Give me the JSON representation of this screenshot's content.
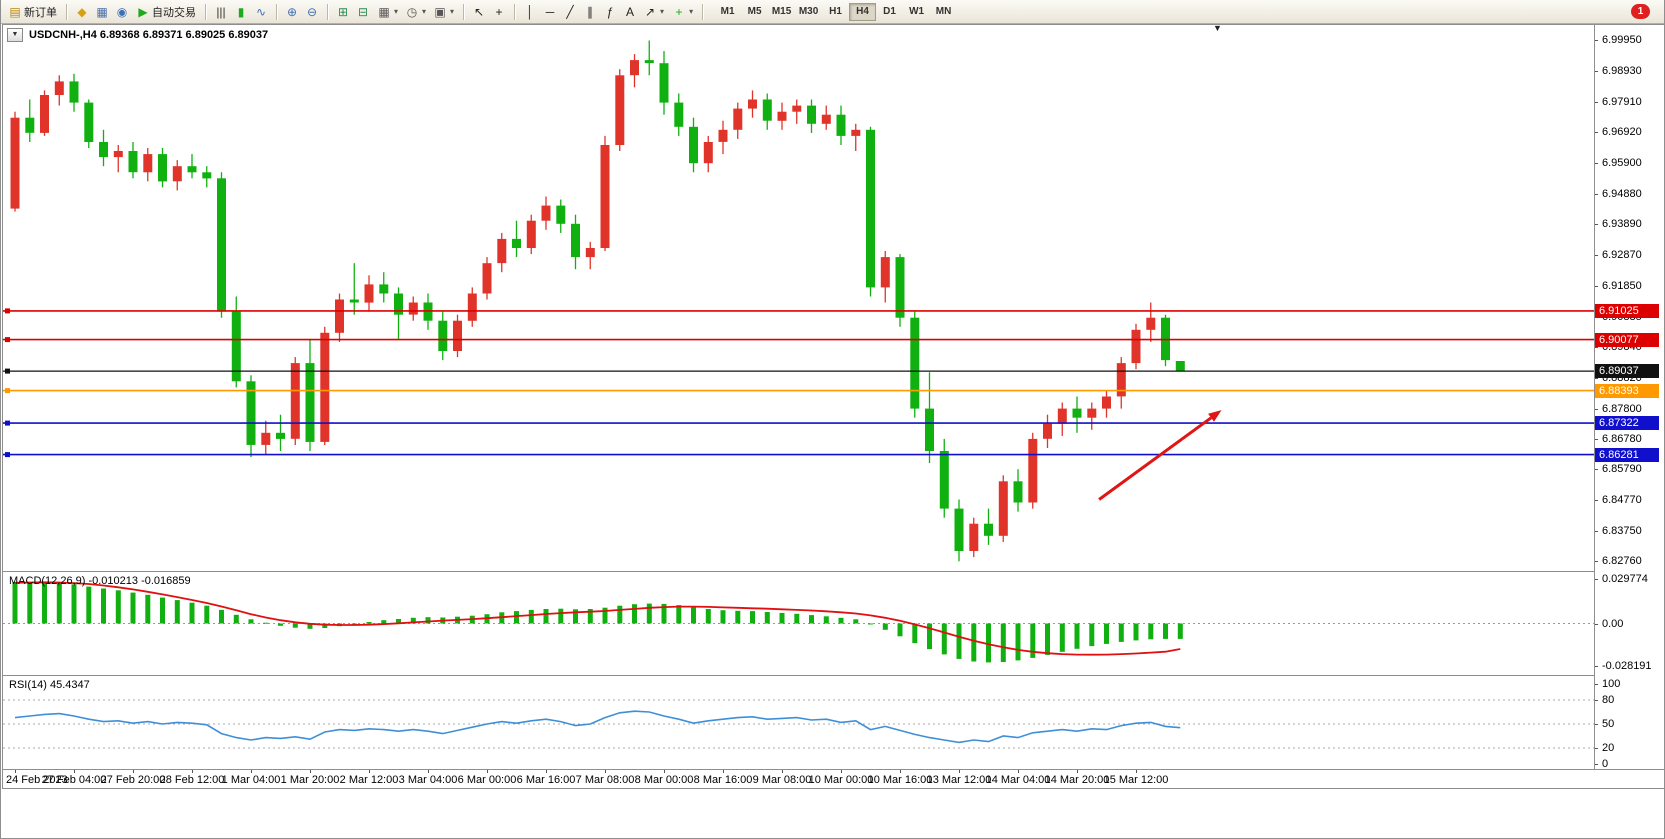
{
  "window": {
    "notification_badge": "1",
    "badge_color": "#e02020"
  },
  "toolbar": {
    "dropdown_glyph": "▾",
    "new_order": {
      "label": "新订单",
      "glyph": "▤",
      "color": "#b8860b"
    },
    "system_icons": [
      {
        "name": "market-watch-icon",
        "glyph": "◆",
        "color": "#d4a017"
      },
      {
        "name": "data-window-icon",
        "glyph": "▦",
        "color": "#4a6da7"
      },
      {
        "name": "metaquotes-icon",
        "glyph": "◉",
        "color": "#3f6fb5"
      }
    ],
    "autotrading": {
      "label": "自动交易",
      "glyph": "▶",
      "color": "#1daa1d"
    },
    "chart_types": [
      {
        "name": "bar-chart-icon",
        "glyph": "|||",
        "color": "#333333"
      },
      {
        "name": "candlestick-chart-icon",
        "glyph": "▮",
        "color": "#1daa1d"
      },
      {
        "name": "line-chart-icon",
        "glyph": "∿",
        "color": "#3f6fb5"
      }
    ],
    "zoom": [
      {
        "name": "zoom-in-icon",
        "glyph": "⊕",
        "color": "#3f6fb5"
      },
      {
        "name": "zoom-out-icon",
        "glyph": "⊖",
        "color": "#3f6fb5"
      }
    ],
    "window_icons": [
      {
        "name": "tile-windows-icon",
        "glyph": "⊞",
        "color": "#2e8b57"
      },
      {
        "name": "cascade-windows-icon",
        "glyph": "⊟",
        "color": "#2e8b57"
      }
    ],
    "chart_tools": [
      {
        "name": "new-chart-icon",
        "glyph": "▦",
        "dropdown": true,
        "color": "#555555"
      },
      {
        "name": "period-icon",
        "glyph": "◷",
        "dropdown": true,
        "color": "#555555"
      },
      {
        "name": "template-icon",
        "glyph": "▣",
        "dropdown": true,
        "color": "#555555"
      }
    ],
    "cursor_tools": [
      {
        "name": "cursor-icon",
        "glyph": "↖",
        "color": "#222222"
      },
      {
        "name": "crosshair-icon",
        "glyph": "+",
        "color": "#222222"
      }
    ],
    "draw_tools": [
      {
        "name": "vertical-line-icon",
        "glyph": "│",
        "color": "#222222"
      },
      {
        "name": "horizontal-line-icon",
        "glyph": "─",
        "color": "#222222"
      },
      {
        "name": "trendline-icon",
        "glyph": "╱",
        "color": "#222222"
      },
      {
        "name": "equidistant-channel-icon",
        "glyph": "∥",
        "color": "#222222"
      },
      {
        "name": "fibonacci-icon",
        "glyph": "ƒ",
        "color": "#222222"
      },
      {
        "name": "text-label-icon",
        "glyph": "A",
        "color": "#222222"
      },
      {
        "name": "arrow-objects-icon",
        "glyph": "↗",
        "dropdown": true,
        "color": "#222222"
      }
    ],
    "indicators": [
      {
        "name": "indicators-icon",
        "glyph": "+",
        "dropdown": true,
        "color": "#1daa1d"
      }
    ],
    "timeframes": [
      "M1",
      "M5",
      "M15",
      "M30",
      "H1",
      "H4",
      "D1",
      "W1",
      "MN"
    ],
    "active_timeframe": "H4"
  },
  "chart": {
    "title": "USDCNH-,H4 6.89368 6.89371 6.89025 6.89037",
    "collapse_glyph": "▼",
    "shift_marker_glyph": "▼"
  },
  "chart_data": [
    {
      "type": "candlestick",
      "symbol": "USDCNH-",
      "timeframe": "H4",
      "current_bar": {
        "open": "6.89368",
        "high": "6.89371",
        "low": "6.89025",
        "close": "6.89037"
      },
      "up_color": "#e0342b",
      "down_color": "#10b010",
      "y_axis": {
        "max": 7.0046,
        "min": 6.8244,
        "labels": [
          "6.99950",
          "6.98930",
          "6.97910",
          "6.96920",
          "6.95900",
          "6.94880",
          "6.93890",
          "6.92870",
          "6.91850",
          "6.90835",
          "6.89840",
          "6.88820",
          "6.87800",
          "6.86780",
          "6.85790",
          "6.84770",
          "6.83750",
          "6.82760"
        ]
      },
      "x_axis": {
        "label_every": 4,
        "labels": [
          "24 Feb 2023",
          "27 Feb 04:00",
          "27 Feb 20:00",
          "28 Feb 12:00",
          "1 Mar 04:00",
          "1 Mar 20:00",
          "2 Mar 12:00",
          "3 Mar 04:00",
          "6 Mar 00:00",
          "6 Mar 16:00",
          "7 Mar 08:00",
          "8 Mar 00:00",
          "8 Mar 16:00",
          "9 Mar 08:00",
          "10 Mar 00:00",
          "10 Mar 16:00",
          "13 Mar 12:00",
          "14 Mar 04:00",
          "14 Mar 20:00",
          "15 Mar 12:00"
        ]
      },
      "hlines": [
        {
          "price": 6.91025,
          "label": "6.91025",
          "color": "#dd0000"
        },
        {
          "price": 6.90077,
          "label": "6.90077",
          "color": "#dd0000"
        },
        {
          "price": 6.89037,
          "label": "6.89037",
          "color": "#101010",
          "role": "current-price"
        },
        {
          "price": 6.88393,
          "label": "6.88393",
          "color": "#ff9900"
        },
        {
          "price": 6.87322,
          "label": "6.87322",
          "color": "#1010cc"
        },
        {
          "price": 6.86281,
          "label": "6.86281",
          "color": "#1010cc"
        }
      ],
      "annotation_arrow": {
        "from_index": 73.5,
        "from_price": 6.848,
        "to_index": 81.8,
        "to_price": 6.8775,
        "color": "#e01515"
      },
      "ohlc": [
        [
          6.944,
          6.976,
          6.943,
          6.974
        ],
        [
          6.974,
          6.98,
          6.966,
          6.969
        ],
        [
          6.969,
          6.983,
          6.968,
          6.9815
        ],
        [
          6.9815,
          6.988,
          6.978,
          6.986
        ],
        [
          6.986,
          6.9885,
          6.976,
          6.979
        ],
        [
          6.979,
          6.98,
          6.964,
          6.966
        ],
        [
          6.966,
          6.97,
          6.958,
          6.961
        ],
        [
          6.961,
          6.965,
          6.956,
          6.963
        ],
        [
          6.963,
          6.966,
          6.954,
          6.956
        ],
        [
          6.956,
          6.964,
          6.953,
          6.962
        ],
        [
          6.962,
          6.964,
          6.951,
          6.953
        ],
        [
          6.953,
          6.96,
          6.95,
          6.958
        ],
        [
          6.958,
          6.962,
          6.954,
          6.956
        ],
        [
          6.956,
          6.958,
          6.951,
          6.954
        ],
        [
          6.954,
          6.956,
          6.908,
          6.91
        ],
        [
          6.91,
          6.915,
          6.885,
          6.887
        ],
        [
          6.887,
          6.889,
          6.862,
          6.866
        ],
        [
          6.866,
          6.874,
          6.863,
          6.87
        ],
        [
          6.87,
          6.876,
          6.864,
          6.868
        ],
        [
          6.868,
          6.895,
          6.866,
          6.893
        ],
        [
          6.893,
          6.901,
          6.864,
          6.867
        ],
        [
          6.867,
          6.905,
          6.866,
          6.903
        ],
        [
          6.903,
          6.916,
          6.9,
          6.914
        ],
        [
          6.914,
          6.926,
          6.909,
          6.913
        ],
        [
          6.913,
          6.922,
          6.91,
          6.919
        ],
        [
          6.919,
          6.923,
          6.913,
          6.916
        ],
        [
          6.916,
          6.918,
          6.901,
          6.909
        ],
        [
          6.909,
          6.915,
          6.907,
          6.913
        ],
        [
          6.913,
          6.916,
          6.904,
          6.907
        ],
        [
          6.907,
          6.91,
          6.894,
          6.897
        ],
        [
          6.897,
          6.909,
          6.895,
          6.907
        ],
        [
          6.907,
          6.918,
          6.905,
          6.916
        ],
        [
          6.916,
          6.928,
          6.914,
          6.926
        ],
        [
          6.926,
          6.936,
          6.923,
          6.934
        ],
        [
          6.934,
          6.94,
          6.928,
          6.931
        ],
        [
          6.931,
          6.942,
          6.929,
          6.94
        ],
        [
          6.94,
          6.948,
          6.937,
          6.945
        ],
        [
          6.945,
          6.947,
          6.936,
          6.939
        ],
        [
          6.939,
          6.942,
          6.924,
          6.928
        ],
        [
          6.928,
          6.933,
          6.924,
          6.931
        ],
        [
          6.931,
          6.968,
          6.93,
          6.965
        ],
        [
          6.965,
          6.99,
          6.963,
          6.988
        ],
        [
          6.988,
          6.995,
          6.984,
          6.993
        ],
        [
          6.993,
          6.9995,
          6.988,
          6.992
        ],
        [
          6.992,
          6.996,
          6.975,
          6.979
        ],
        [
          6.979,
          6.982,
          6.968,
          6.971
        ],
        [
          6.971,
          6.974,
          6.956,
          6.959
        ],
        [
          6.959,
          6.968,
          6.956,
          6.966
        ],
        [
          6.966,
          6.973,
          6.962,
          6.97
        ],
        [
          6.97,
          6.979,
          6.967,
          6.977
        ],
        [
          6.977,
          6.983,
          6.974,
          6.98
        ],
        [
          6.98,
          6.982,
          6.97,
          6.973
        ],
        [
          6.973,
          6.979,
          6.97,
          6.976
        ],
        [
          6.976,
          6.98,
          6.972,
          6.978
        ],
        [
          6.978,
          6.98,
          6.969,
          6.972
        ],
        [
          6.972,
          6.978,
          6.97,
          6.975
        ],
        [
          6.975,
          6.978,
          6.965,
          6.968
        ],
        [
          6.968,
          6.972,
          6.963,
          6.97
        ],
        [
          6.97,
          6.971,
          6.915,
          6.918
        ],
        [
          6.918,
          6.93,
          6.913,
          6.928
        ],
        [
          6.928,
          6.929,
          6.905,
          6.908
        ],
        [
          6.908,
          6.91,
          6.875,
          6.878
        ],
        [
          6.878,
          6.89,
          6.86,
          6.864
        ],
        [
          6.864,
          6.868,
          6.842,
          6.845
        ],
        [
          6.845,
          6.848,
          6.8276,
          6.831
        ],
        [
          6.831,
          6.842,
          6.829,
          6.84
        ],
        [
          6.84,
          6.845,
          6.833,
          6.836
        ],
        [
          6.836,
          6.856,
          6.834,
          6.854
        ],
        [
          6.854,
          6.858,
          6.844,
          6.847
        ],
        [
          6.847,
          6.87,
          6.845,
          6.868
        ],
        [
          6.868,
          6.876,
          6.865,
          6.873
        ],
        [
          6.873,
          6.88,
          6.869,
          6.878
        ],
        [
          6.878,
          6.882,
          6.87,
          6.875
        ],
        [
          6.875,
          6.88,
          6.871,
          6.878
        ],
        [
          6.878,
          6.884,
          6.875,
          6.882
        ],
        [
          6.882,
          6.895,
          6.878,
          6.893
        ],
        [
          6.893,
          6.906,
          6.891,
          6.904
        ],
        [
          6.904,
          6.913,
          6.9,
          6.908
        ],
        [
          6.908,
          6.909,
          6.892,
          6.894
        ],
        [
          6.8937,
          6.8937,
          6.8903,
          6.8904
        ]
      ]
    },
    {
      "type": "bar",
      "name": "MACD",
      "label": "MACD(12,26,9) -0.010213 -0.016859",
      "bar_color": "#10b010",
      "signal_color": "#e01010",
      "y_axis": {
        "max": 0.0315,
        "min": -0.0315,
        "labels": [
          "0.029774",
          "0.00",
          "-0.028191"
        ]
      },
      "values": [
        0.0275,
        0.027,
        0.0272,
        0.0268,
        0.026,
        0.0245,
        0.0232,
        0.022,
        0.0205,
        0.019,
        0.0172,
        0.0155,
        0.0138,
        0.0118,
        0.009,
        0.0058,
        0.0028,
        0.0005,
        -0.0015,
        -0.0028,
        -0.0035,
        -0.003,
        -0.0018,
        -0.0005,
        0.001,
        0.0022,
        0.003,
        0.0038,
        0.0042,
        0.004,
        0.0045,
        0.0052,
        0.0062,
        0.0074,
        0.0082,
        0.009,
        0.0096,
        0.0098,
        0.0094,
        0.0096,
        0.0105,
        0.0118,
        0.0128,
        0.0132,
        0.013,
        0.0122,
        0.0108,
        0.0096,
        0.0088,
        0.0084,
        0.0082,
        0.0076,
        0.007,
        0.0064,
        0.0056,
        0.0048,
        0.0038,
        0.0028,
        -0.0005,
        -0.0042,
        -0.0085,
        -0.013,
        -0.017,
        -0.0205,
        -0.0235,
        -0.0252,
        -0.0258,
        -0.0255,
        -0.0245,
        -0.0228,
        -0.0208,
        -0.0188,
        -0.0168,
        -0.015,
        -0.0135,
        -0.0122,
        -0.0112,
        -0.0105,
        -0.0102,
        -0.0102
      ],
      "signal": [
        0.027,
        0.0272,
        0.0273,
        0.0272,
        0.0268,
        0.0262,
        0.0252,
        0.024,
        0.0226,
        0.021,
        0.0193,
        0.0175,
        0.0156,
        0.0136,
        0.0113,
        0.0088,
        0.0062,
        0.004,
        0.0022,
        0.0008,
        -0.0002,
        -0.0008,
        -0.001,
        -0.001,
        -0.0008,
        -0.0004,
        0.0001,
        0.0007,
        0.0013,
        0.0019,
        0.0024,
        0.0029,
        0.0035,
        0.0042,
        0.0049,
        0.0056,
        0.0063,
        0.0069,
        0.0074,
        0.0078,
        0.0083,
        0.009,
        0.0097,
        0.0104,
        0.0109,
        0.0112,
        0.0112,
        0.011,
        0.0107,
        0.0104,
        0.0101,
        0.0098,
        0.0094,
        0.009,
        0.0086,
        0.0081,
        0.0074,
        0.0066,
        0.0054,
        0.0038,
        0.0018,
        -0.0006,
        -0.0032,
        -0.006,
        -0.0088,
        -0.0114,
        -0.0138,
        -0.0158,
        -0.0175,
        -0.0188,
        -0.0197,
        -0.0203,
        -0.0206,
        -0.0207,
        -0.0206,
        -0.0203,
        -0.0199,
        -0.0193,
        -0.0187,
        -0.0169
      ]
    },
    {
      "type": "line",
      "name": "RSI",
      "label": "RSI(14) 45.4347",
      "line_color": "#3e8fd8",
      "levels": [
        80,
        50,
        20
      ],
      "y_axis": {
        "max": 100,
        "min": 0,
        "labels": [
          "100",
          "80",
          "50",
          "20",
          "0"
        ]
      },
      "values": [
        58,
        60,
        62,
        63,
        60,
        56,
        53,
        54,
        51,
        53,
        50,
        52,
        51,
        49,
        38,
        33,
        30,
        33,
        32,
        34,
        31,
        40,
        43,
        42,
        44,
        43,
        41,
        43,
        41,
        38,
        42,
        46,
        50,
        53,
        51,
        54,
        56,
        53,
        48,
        50,
        58,
        64,
        66,
        65,
        60,
        56,
        51,
        54,
        56,
        58,
        59,
        56,
        57,
        58,
        55,
        56,
        52,
        54,
        43,
        47,
        42,
        37,
        33,
        30,
        27,
        30,
        28,
        35,
        33,
        39,
        41,
        43,
        41,
        44,
        43,
        48,
        51,
        52,
        47,
        45.4347
      ]
    }
  ]
}
